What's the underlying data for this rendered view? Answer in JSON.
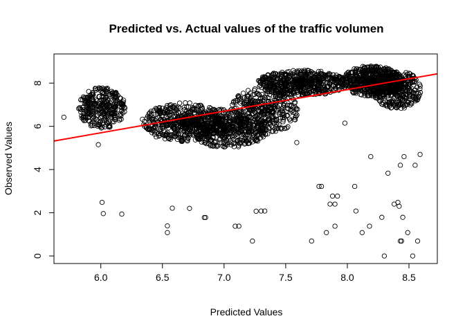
{
  "chart_data": {
    "type": "scatter",
    "title": "Predicted vs. Actual values of the traffic volumen",
    "xlabel": "Predicted Values",
    "ylabel": "Observed Values",
    "xlim": [
      5.62,
      8.73
    ],
    "ylim": [
      -0.35,
      9.35
    ],
    "xticks": [
      6.0,
      6.5,
      7.0,
      7.5,
      8.0,
      8.5
    ],
    "xtick_labels": [
      "6.0",
      "6.5",
      "7.0",
      "7.5",
      "8.0",
      "8.5"
    ],
    "yticks": [
      0,
      2,
      4,
      6,
      8
    ],
    "ytick_labels": [
      "0",
      "2",
      "4",
      "6",
      "8"
    ],
    "grid": false,
    "legend": "none",
    "colors": {
      "points": "#000000",
      "fit_line": "#ff0000"
    },
    "fit_line": {
      "intercept": -0.3,
      "slope": 1.0,
      "color": "#ff0000"
    },
    "clusters": [
      {
        "x": [
          5.82,
          6.2
        ],
        "y": [
          5.9,
          7.8
        ],
        "n": 320
      },
      {
        "x": [
          6.33,
          7.0
        ],
        "y": [
          5.3,
          7.1
        ],
        "n": 520
      },
      {
        "x": [
          6.7,
          7.35
        ],
        "y": [
          5.0,
          6.8
        ],
        "n": 480
      },
      {
        "x": [
          7.05,
          7.6
        ],
        "y": [
          5.6,
          7.8
        ],
        "n": 380
      },
      {
        "x": [
          7.27,
          8.0
        ],
        "y": [
          7.4,
          8.6
        ],
        "n": 600
      },
      {
        "x": [
          7.95,
          8.45
        ],
        "y": [
          7.4,
          8.8
        ],
        "n": 560
      },
      {
        "x": [
          8.2,
          8.6
        ],
        "y": [
          6.8,
          8.6
        ],
        "n": 360
      }
    ],
    "points": [
      {
        "x": 5.7,
        "y": 6.42
      },
      {
        "x": 5.98,
        "y": 5.15
      },
      {
        "x": 6.01,
        "y": 2.48
      },
      {
        "x": 6.02,
        "y": 1.96
      },
      {
        "x": 6.17,
        "y": 1.94
      },
      {
        "x": 6.54,
        "y": 1.39
      },
      {
        "x": 6.54,
        "y": 1.08
      },
      {
        "x": 6.58,
        "y": 2.21
      },
      {
        "x": 6.72,
        "y": 2.2
      },
      {
        "x": 6.84,
        "y": 1.78
      },
      {
        "x": 6.85,
        "y": 1.78
      },
      {
        "x": 7.09,
        "y": 1.38
      },
      {
        "x": 7.12,
        "y": 1.38
      },
      {
        "x": 7.23,
        "y": 0.69
      },
      {
        "x": 7.26,
        "y": 2.07
      },
      {
        "x": 7.3,
        "y": 2.08
      },
      {
        "x": 7.33,
        "y": 2.08
      },
      {
        "x": 7.59,
        "y": 5.25
      },
      {
        "x": 7.71,
        "y": 0.69
      },
      {
        "x": 7.77,
        "y": 3.22
      },
      {
        "x": 7.79,
        "y": 3.22
      },
      {
        "x": 7.83,
        "y": 1.08
      },
      {
        "x": 7.86,
        "y": 2.4
      },
      {
        "x": 7.88,
        "y": 2.77
      },
      {
        "x": 7.9,
        "y": 2.4
      },
      {
        "x": 7.9,
        "y": 1.38
      },
      {
        "x": 7.92,
        "y": 2.77
      },
      {
        "x": 7.98,
        "y": 6.15
      },
      {
        "x": 8.06,
        "y": 3.22
      },
      {
        "x": 8.07,
        "y": 2.08
      },
      {
        "x": 8.12,
        "y": 1.08
      },
      {
        "x": 8.18,
        "y": 1.38
      },
      {
        "x": 8.19,
        "y": 4.6
      },
      {
        "x": 8.28,
        "y": 1.79
      },
      {
        "x": 8.3,
        "y": 0.0
      },
      {
        "x": 8.33,
        "y": 3.83
      },
      {
        "x": 8.38,
        "y": 2.4
      },
      {
        "x": 8.41,
        "y": 2.48
      },
      {
        "x": 8.42,
        "y": 2.3
      },
      {
        "x": 8.43,
        "y": 4.2
      },
      {
        "x": 8.43,
        "y": 0.69
      },
      {
        "x": 8.44,
        "y": 0.69
      },
      {
        "x": 8.45,
        "y": 1.79
      },
      {
        "x": 8.46,
        "y": 4.6
      },
      {
        "x": 8.49,
        "y": 1.08
      },
      {
        "x": 8.53,
        "y": 0.0
      },
      {
        "x": 8.55,
        "y": 4.2
      },
      {
        "x": 8.57,
        "y": 0.69
      },
      {
        "x": 8.59,
        "y": 4.7
      }
    ]
  }
}
